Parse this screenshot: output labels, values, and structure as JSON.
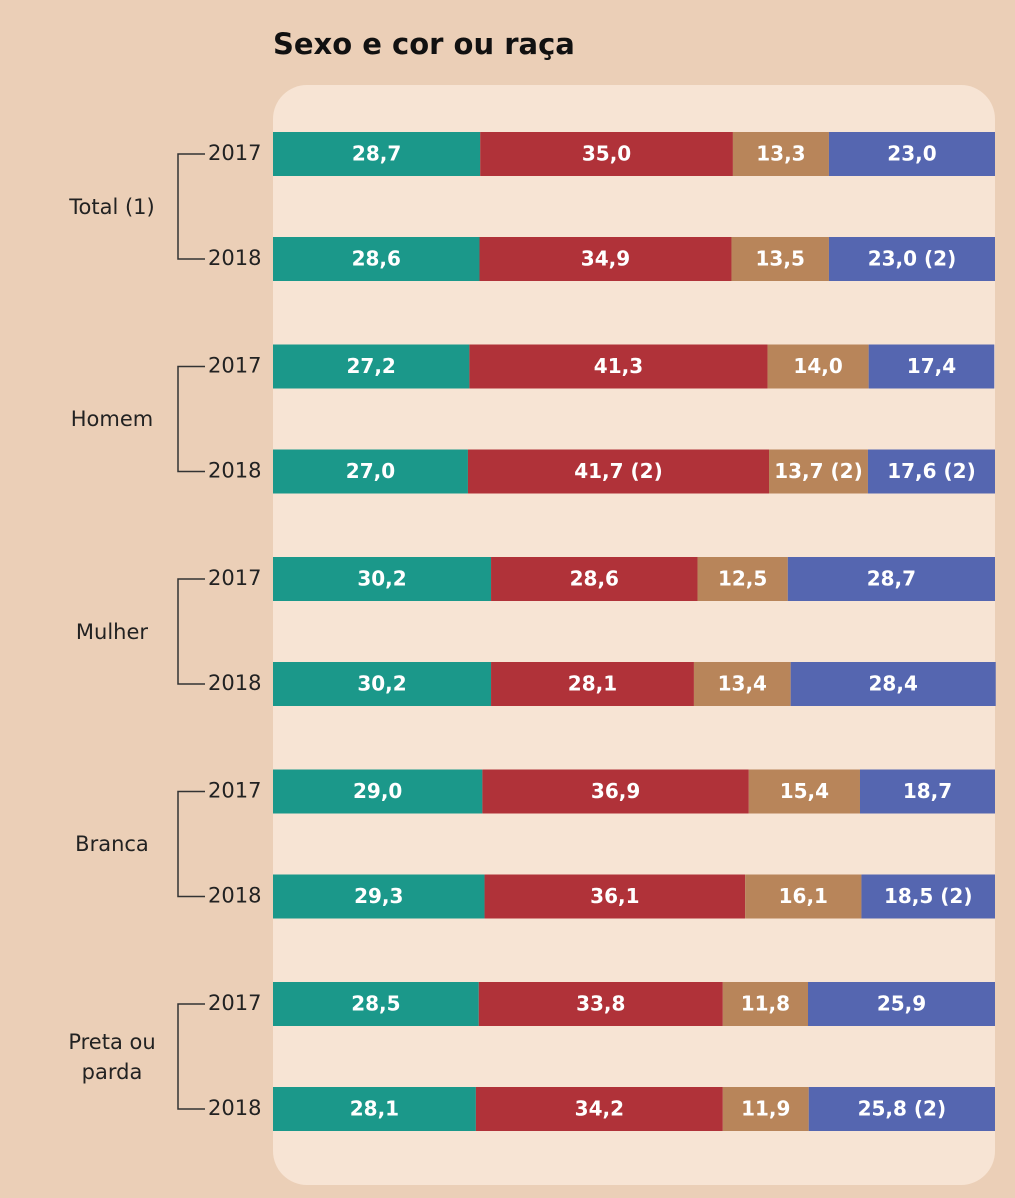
{
  "chart_data": {
    "type": "stacked_bar_horizontal",
    "title": "Sexo e cor ou raça",
    "groups": [
      "Total (1)",
      "Homem",
      "Mulher",
      "Branca",
      "Preta ou parda"
    ],
    "categories": [
      "2017",
      "2018",
      "2017",
      "2018",
      "2017",
      "2018",
      "2017",
      "2018",
      "2017",
      "2018"
    ],
    "xlim": [
      0,
      100
    ],
    "series": [
      {
        "color": "#1b988a",
        "values": [
          28.7,
          28.6,
          27.2,
          27.0,
          30.2,
          30.2,
          29.0,
          29.3,
          28.5,
          28.1
        ],
        "value_labels": [
          "28,7",
          "28,6",
          "27,2",
          "27,0",
          "30,2",
          "30,2",
          "29,0",
          "29,3",
          "28,5",
          "28,1"
        ]
      },
      {
        "color": "#b03239",
        "values": [
          35.0,
          34.9,
          41.3,
          41.7,
          28.6,
          28.1,
          36.9,
          36.1,
          33.8,
          34.2
        ],
        "value_labels": [
          "35,0",
          "34,9",
          "41,3",
          "41,7 (2)",
          "28,6",
          "28,1",
          "36,9",
          "36,1",
          "33,8",
          "34,2"
        ]
      },
      {
        "color": "#b8855a",
        "values": [
          13.3,
          13.5,
          14.0,
          13.7,
          12.5,
          13.4,
          15.4,
          16.1,
          11.8,
          11.9
        ],
        "value_labels": [
          "13,3",
          "13,5",
          "14,0",
          "13,7 (2)",
          "12,5",
          "13,4",
          "15,4",
          "16,1",
          "11,8",
          "11,9"
        ]
      },
      {
        "color": "#5566b0",
        "values": [
          23.0,
          23.0,
          17.4,
          17.6,
          28.7,
          28.4,
          18.7,
          18.5,
          25.9,
          25.8
        ],
        "value_labels": [
          "23,0",
          "23,0 (2)",
          "17,4",
          "17,6 (2)",
          "28,7",
          "28,4",
          "18,7",
          "18,5 (2)",
          "25,9",
          "25,8 (2)"
        ]
      }
    ]
  }
}
